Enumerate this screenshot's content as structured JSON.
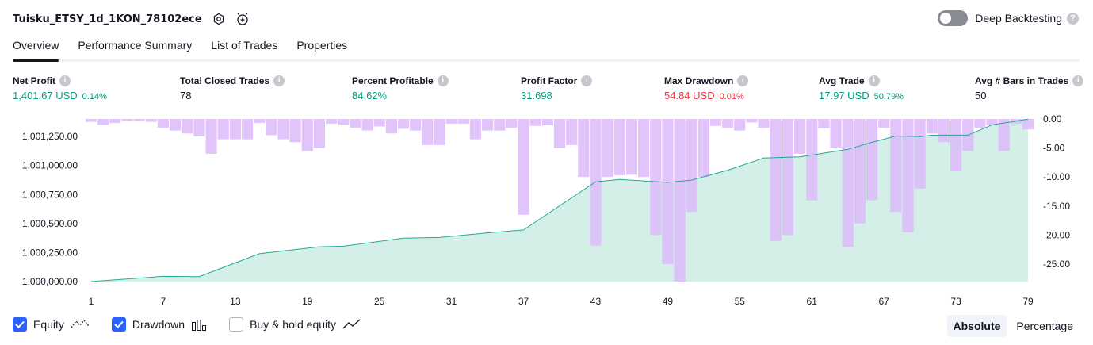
{
  "header": {
    "title": "Tuisku_ETSY_1d_1KON_78102ece",
    "deep_backtesting_label": "Deep Backtesting",
    "deep_backtesting_enabled": false
  },
  "tabs": [
    {
      "label": "Overview",
      "active": true
    },
    {
      "label": "Performance Summary",
      "active": false
    },
    {
      "label": "List of Trades",
      "active": false
    },
    {
      "label": "Properties",
      "active": false
    }
  ],
  "metrics": {
    "net_profit": {
      "label": "Net Profit",
      "value": "1,401.67 USD",
      "pct": "0.14%"
    },
    "total_closed_trades": {
      "label": "Total Closed Trades",
      "value": "78"
    },
    "percent_profitable": {
      "label": "Percent Profitable",
      "value": "84.62%"
    },
    "profit_factor": {
      "label": "Profit Factor",
      "value": "31.698"
    },
    "max_drawdown": {
      "label": "Max Drawdown",
      "value": "54.84 USD",
      "pct": "0.01%"
    },
    "avg_trade": {
      "label": "Avg Trade",
      "value": "17.97 USD",
      "pct": "50.79%"
    },
    "avg_bars": {
      "label": "Avg # Bars in Trades",
      "value": "50"
    }
  },
  "colors": {
    "positive": "#089981",
    "negative": "#f23645",
    "equity_line": "#22ab94",
    "equity_fill": "#d3efe8",
    "drawdown_bar": "#dcbbf9",
    "accent": "#2962ff"
  },
  "chart_data": {
    "type": "area",
    "x_ticks": [
      "1",
      "7",
      "13",
      "19",
      "25",
      "31",
      "37",
      "43",
      "49",
      "55",
      "61",
      "67",
      "73",
      "79"
    ],
    "x_range": [
      1,
      79
    ],
    "left_axis": {
      "ticks": [
        "1,000,000.00",
        "1,000,250.00",
        "1,000,500.00",
        "1,000,750.00",
        "1,001,000.00",
        "1,001,250.00"
      ],
      "range": [
        1000000,
        1001401.67
      ]
    },
    "right_axis": {
      "ticks": [
        "0.00",
        "-5.00",
        "-10.00",
        "-15.00",
        "-20.00",
        "-25.00"
      ],
      "range": [
        -28,
        0
      ]
    },
    "series": [
      {
        "name": "Equity",
        "points": [
          [
            1,
            1000000
          ],
          [
            7,
            1000045
          ],
          [
            10,
            1000043
          ],
          [
            15,
            1000240
          ],
          [
            20,
            1000300
          ],
          [
            22,
            1000305
          ],
          [
            27,
            1000375
          ],
          [
            30,
            1000380
          ],
          [
            34,
            1000420
          ],
          [
            37,
            1000445
          ],
          [
            43,
            1000860
          ],
          [
            45,
            1000880
          ],
          [
            49,
            1000855
          ],
          [
            51,
            1000875
          ],
          [
            54,
            1000960
          ],
          [
            57,
            1001065
          ],
          [
            60,
            1001075
          ],
          [
            64,
            1001140
          ],
          [
            66,
            1001200
          ],
          [
            68,
            1001255
          ],
          [
            70,
            1001250
          ],
          [
            71,
            1001262
          ],
          [
            74,
            1001262
          ],
          [
            76,
            1001350
          ],
          [
            79,
            1001400
          ]
        ]
      },
      {
        "name": "Drawdown",
        "values": [
          -0.5,
          -1.0,
          -0.7,
          -0.3,
          -0.3,
          -0.5,
          -1.5,
          -2.0,
          -2.5,
          -3.0,
          -6.0,
          -3.5,
          -3.5,
          -3.5,
          -0.7,
          -2.8,
          -3.5,
          -4.0,
          -5.5,
          -5.0,
          -0.8,
          -1.0,
          -1.5,
          -2.0,
          -1.3,
          -2.5,
          -1.7,
          -2.0,
          -4.5,
          -4.5,
          -0.8,
          -0.8,
          -3.5,
          -2.0,
          -2.0,
          -1.5,
          -16.5,
          -1.2,
          -1.1,
          -5.0,
          -4.5,
          -10.0,
          -21.8,
          -10.0,
          -9.7,
          -9.6,
          -10.0,
          -20.0,
          -25.0,
          -28.0,
          -16.0,
          -10.0,
          -1.2,
          -1.5,
          -2.0,
          -0.6,
          -1.5,
          -21.0,
          -20.0,
          -6.0,
          -14.0,
          -1.6,
          -5.0,
          -22.0,
          -18.0,
          -14.0,
          -1.5,
          -16.0,
          -19.5,
          -12.0,
          -2.5,
          -4.0,
          -9.0,
          -5.5,
          -1.5,
          -1.0,
          -5.5,
          -0.8,
          -1.8
        ]
      }
    ],
    "legend": [
      "Equity",
      "Drawdown",
      "Buy & hold equity"
    ],
    "visible": {
      "Equity": true,
      "Drawdown": true,
      "Buy & hold equity": false
    }
  },
  "legend": {
    "equity_label": "Equity",
    "drawdown_label": "Drawdown",
    "buyhold_label": "Buy & hold equity"
  },
  "modes": {
    "absolute_label": "Absolute",
    "percentage_label": "Percentage",
    "active": "Absolute"
  }
}
